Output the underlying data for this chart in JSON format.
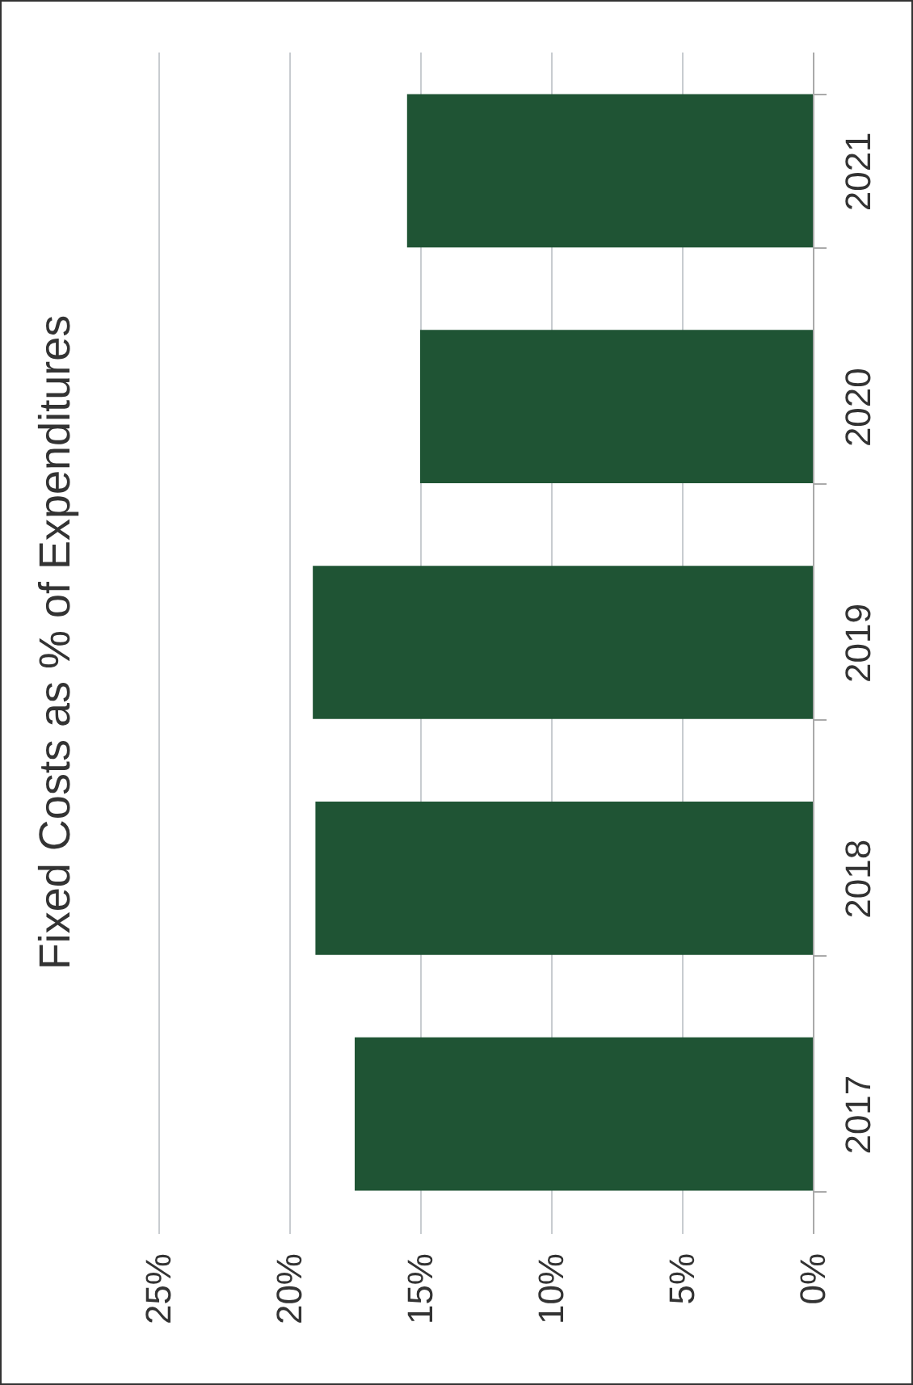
{
  "chart_data": {
    "type": "bar",
    "title": "Fixed Costs as % of Expenditures",
    "orientation": "horizontal",
    "categories": [
      "2021",
      "2020",
      "2019",
      "2018",
      "2017"
    ],
    "series": [
      {
        "color": "#1f5434",
        "values": [
          15.5,
          15.0,
          19.1,
          19.0,
          17.5
        ]
      }
    ],
    "xlim": [
      25,
      0
    ],
    "xticks": [
      {
        "value": 25,
        "label": "25%"
      },
      {
        "value": 20,
        "label": "20%"
      },
      {
        "value": 15,
        "label": "15%"
      },
      {
        "value": 10,
        "label": "10%"
      },
      {
        "value": 5,
        "label": "5%"
      },
      {
        "value": 0,
        "label": "0%"
      }
    ],
    "grid": "x"
  }
}
